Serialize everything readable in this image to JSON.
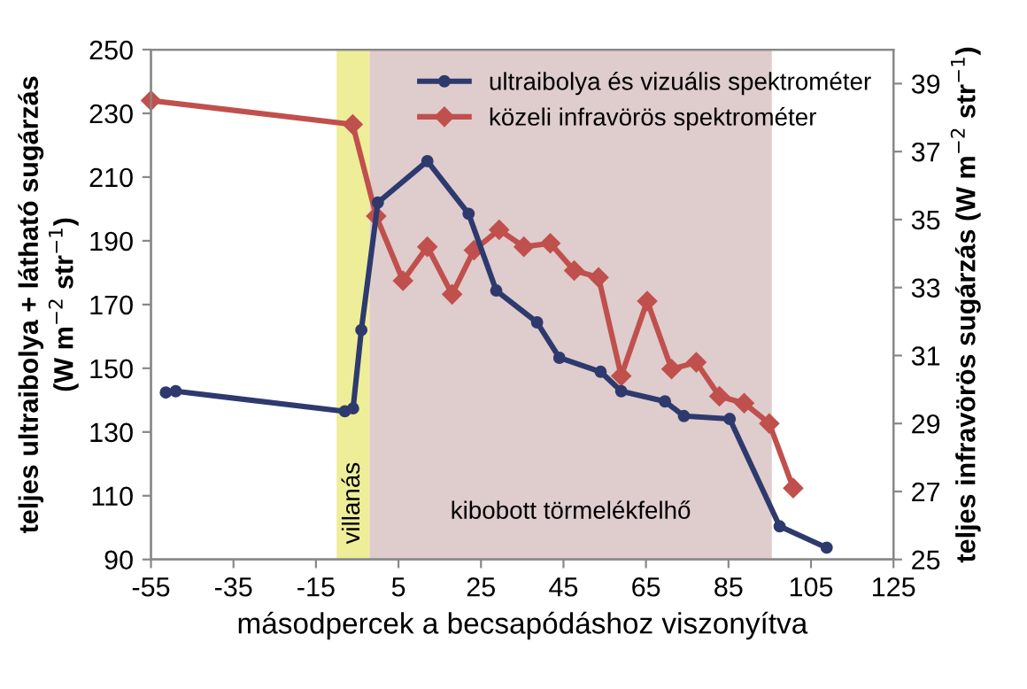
{
  "chart_data": {
    "type": "line",
    "xlabel": "másodpercek a becsapódáshoz viszonyítva",
    "ylabel": "teljes ultraibolya + látható sugárzás\n(W m$^{−2}$ str$^{−1}$)",
    "y2label": "teljes infravörös sugárzás (W m$^{−2}$ str$^{−1}$)",
    "xlim": [
      -55,
      125
    ],
    "xticks": [
      -55,
      -35,
      -15,
      5,
      25,
      45,
      65,
      85,
      105,
      125
    ],
    "ylim": [
      90,
      250
    ],
    "yticks": [
      90,
      110,
      130,
      150,
      170,
      190,
      210,
      230,
      250
    ],
    "y2lim": [
      25,
      40
    ],
    "y2ticks": [
      25,
      27,
      29,
      31,
      33,
      35,
      37,
      39
    ],
    "grid": false,
    "legend": "top right",
    "bands": [
      {
        "axis": "x",
        "from": -10,
        "to": -2,
        "label": "villanás",
        "color": "#eeee99"
      },
      {
        "axis": "x",
        "from": -2,
        "to": 95.5,
        "label": "kibobott törmelékfelhő",
        "color": "#dfcccc"
      }
    ],
    "series": [
      {
        "name": "ultraibolya és vizuális spektrométer",
        "color": "#2e3a6e",
        "marker": "circle",
        "x": [
          -51.4,
          -49,
          -8,
          -6,
          -4,
          0,
          12,
          22,
          28.7,
          38.6,
          44,
          54,
          59,
          69.6,
          74.2,
          85.3,
          97.4,
          108.8
        ],
        "values": [
          142.4,
          142.8,
          136.5,
          137.4,
          162,
          202,
          215,
          198.5,
          174.4,
          164.4,
          153.3,
          148.9,
          142.8,
          139.6,
          135,
          134.1,
          100.4,
          93.7
        ]
      },
      {
        "name": "közeli infravörös spektrométer",
        "color": "#c0504d",
        "marker": "diamond",
        "axis": "y2",
        "x": [
          -55,
          -6.1,
          -0.4,
          6.1,
          12,
          18,
          23.3,
          29.4,
          35.4,
          41.8,
          47.6,
          53.5,
          59,
          65.3,
          71.2,
          77.2,
          82.8,
          88.8,
          94.9,
          100.7
        ],
        "values": [
          38.5,
          37.8,
          35.1,
          33.2,
          34.2,
          32.8,
          34.1,
          34.7,
          34.2,
          34.3,
          33.5,
          33.3,
          30.4,
          32.6,
          30.6,
          30.8,
          29.8,
          29.6,
          29.0,
          27.1
        ]
      }
    ]
  }
}
